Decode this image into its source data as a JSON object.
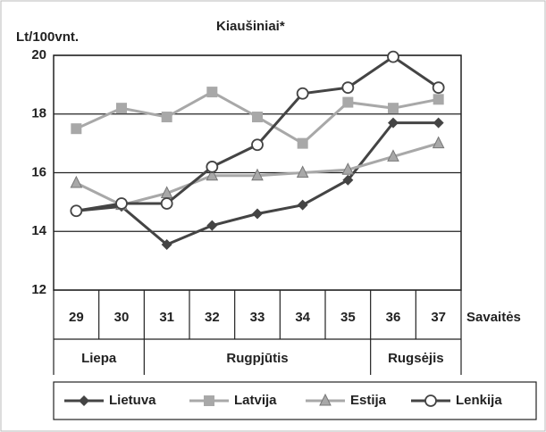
{
  "chart_data": {
    "type": "line",
    "title": "Kiaušiniai*",
    "y_label": "Lt/100vnt.",
    "x_label": "Savaitės",
    "categories": [
      "29",
      "30",
      "31",
      "32",
      "33",
      "34",
      "35",
      "36",
      "37"
    ],
    "x_groups": [
      {
        "label": "Liepa",
        "categories": [
          "29",
          "30"
        ]
      },
      {
        "label": "Rugpjūtis",
        "categories": [
          "31",
          "32",
          "33",
          "34",
          "35"
        ]
      },
      {
        "label": "Rugsėjis",
        "categories": [
          "36",
          "37"
        ]
      }
    ],
    "series": [
      {
        "name": "Lietuva",
        "color": "#444444",
        "marker": "diamond",
        "values": [
          14.7,
          14.85,
          13.55,
          14.2,
          14.6,
          14.9,
          15.75,
          17.7,
          17.7
        ]
      },
      {
        "name": "Latvija",
        "color": "#a8a8a8",
        "marker": "square",
        "values": [
          17.5,
          18.2,
          17.9,
          18.75,
          17.9,
          17.0,
          18.4,
          18.2,
          18.5
        ]
      },
      {
        "name": "Estija",
        "color": "#a8a8a8",
        "marker": "triangle",
        "values": [
          15.65,
          14.9,
          15.3,
          15.9,
          15.9,
          16.0,
          16.1,
          16.55,
          17.0
        ]
      },
      {
        "name": "Lenkija",
        "color": "#444444",
        "marker": "circle",
        "values": [
          14.7,
          14.95,
          14.95,
          16.2,
          16.95,
          18.7,
          18.9,
          19.95,
          18.9
        ]
      }
    ],
    "ylim": [
      12,
      20
    ],
    "yticks": [
      12,
      14,
      16,
      18,
      20
    ],
    "grid": true
  }
}
